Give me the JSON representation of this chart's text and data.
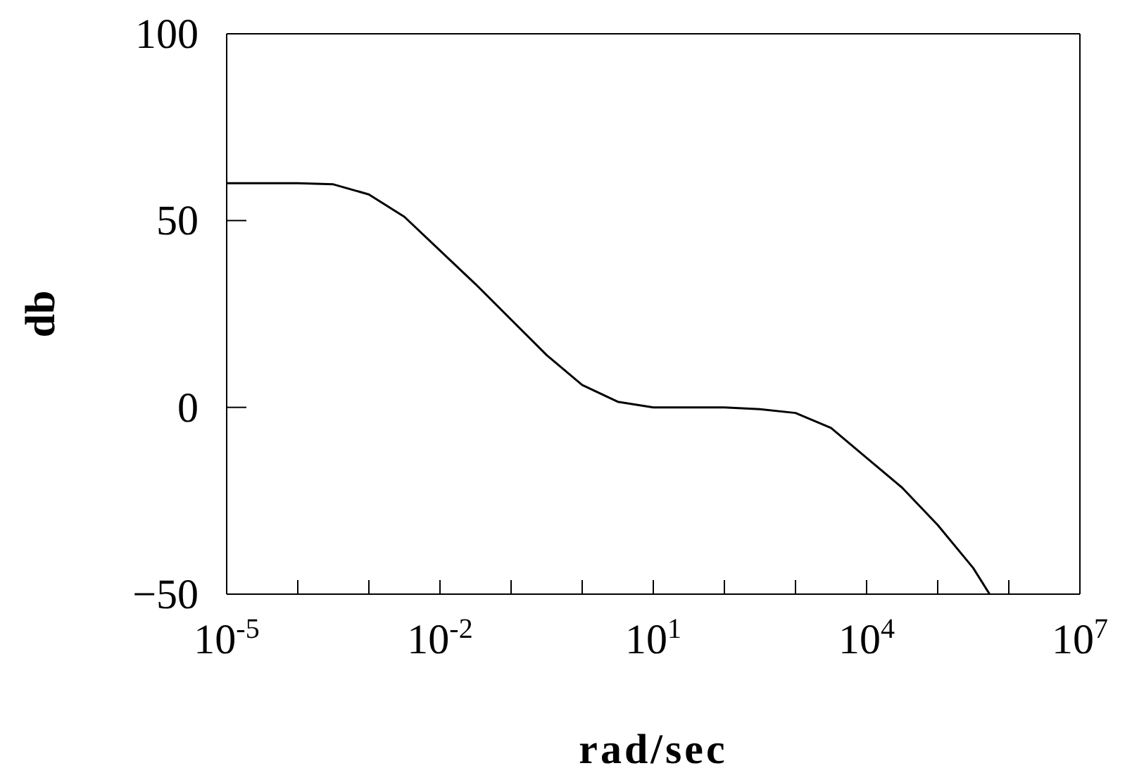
{
  "chart_data": {
    "type": "line",
    "xlabel": "rad/sec",
    "ylabel": "db",
    "log": "x",
    "x": [
      1e-05,
      0.0001,
      0.000316,
      0.001,
      0.00316,
      0.01,
      0.0316,
      0.1,
      0.316,
      1,
      3.16,
      10,
      100,
      316,
      1000,
      3160,
      10000,
      31600,
      100000,
      316000,
      537000
    ],
    "series": [
      {
        "color": "#000000",
        "values": [
          60,
          60,
          59.7,
          57,
          51,
          42,
          33,
          23.5,
          14,
          6,
          1.5,
          0,
          0,
          -0.5,
          -1.5,
          -5.5,
          -13.5,
          -21.5,
          -31.5,
          -43,
          -50
        ]
      }
    ],
    "xlim": [
      1e-05,
      10000000
    ],
    "xticks": [
      {
        "value": 1e-05,
        "label": "10$^{-5}$"
      },
      {
        "value": 0.0001,
        "label": null
      },
      {
        "value": 0.001,
        "label": null
      },
      {
        "value": 0.01,
        "label": "10$^{-2}$"
      },
      {
        "value": 0.1,
        "label": null
      },
      {
        "value": 1,
        "label": null
      },
      {
        "value": 10,
        "label": "10$^{1}$"
      },
      {
        "value": 100,
        "label": null
      },
      {
        "value": 1000,
        "label": null
      },
      {
        "value": 10000,
        "label": "10$^{4}$"
      },
      {
        "value": 100000,
        "label": null
      },
      {
        "value": 1000000,
        "label": null
      },
      {
        "value": 10000000,
        "label": "10$^{7}$"
      }
    ],
    "ylim": [
      -50,
      100
    ],
    "yticks": [
      -50,
      0,
      50,
      100
    ],
    "marker": "none",
    "line_style": "solid"
  }
}
